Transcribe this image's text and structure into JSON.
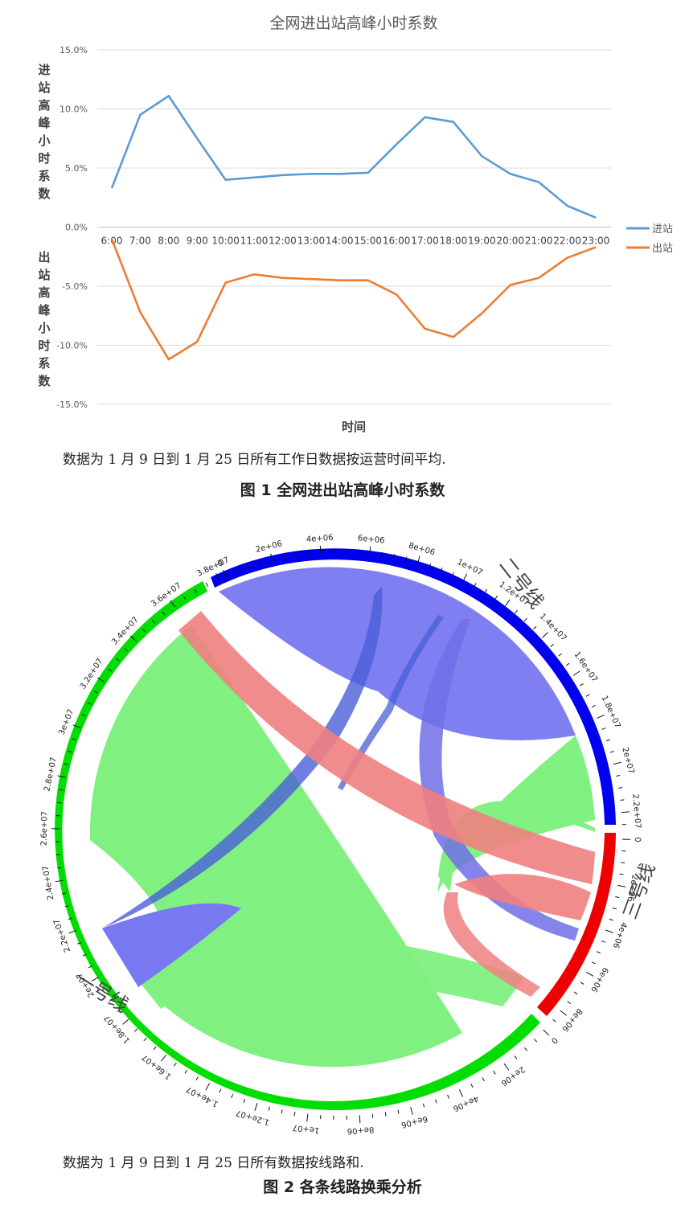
{
  "figure1": {
    "chart_data": {
      "type": "line",
      "title": "全网进出站高峰小时系数",
      "xlabel": "时间",
      "ylabel_top": "进站高峰小时系数",
      "ylabel_bottom": "出站高峰小时系数",
      "ylim": [
        -0.15,
        0.15
      ],
      "yticks": [
        "15.0%",
        "10.0%",
        "5.0%",
        "0.0%",
        "-5.0%",
        "-10.0%",
        "-15.0%"
      ],
      "categories": [
        "6:00",
        "7:00",
        "8:00",
        "9:00",
        "10:00",
        "11:00",
        "12:00",
        "13:00",
        "14:00",
        "15:00",
        "16:00",
        "17:00",
        "18:00",
        "19:00",
        "20:00",
        "21:00",
        "22:00",
        "23:00"
      ],
      "series": [
        {
          "name": "进站",
          "color": "#5b9bd5",
          "values": [
            0.033,
            0.095,
            0.111,
            0.075,
            0.04,
            0.042,
            0.044,
            0.045,
            0.045,
            0.046,
            0.07,
            0.093,
            0.089,
            0.06,
            0.045,
            0.038,
            0.018,
            0.008
          ]
        },
        {
          "name": "出站",
          "color": "#ed7d31",
          "values": [
            -0.01,
            -0.072,
            -0.112,
            -0.097,
            -0.047,
            -0.04,
            -0.043,
            -0.044,
            -0.045,
            -0.045,
            -0.057,
            -0.086,
            -0.093,
            -0.073,
            -0.049,
            -0.043,
            -0.026,
            -0.017
          ]
        }
      ],
      "legend_position": "right"
    },
    "note": "数据为 1 月 9 日到 1 月 25 日所有工作日数据按运营时间平均.",
    "caption": "图 1   全网进出站高峰小时系数"
  },
  "figure2": {
    "chart_data": {
      "type": "chord",
      "groups": [
        {
          "name": "二号线",
          "color": "#0000ee",
          "ticks": [
            "0",
            "2e+06",
            "4e+06",
            "6e+06",
            "8e+06",
            "1e+07",
            "1.2e+07",
            "1.4e+07",
            "1.6e+07",
            "1.8e+07",
            "2e+07",
            "2.2e+07"
          ]
        },
        {
          "name": "三号线",
          "color": "#ee0000",
          "ticks": [
            "0",
            "2e+06",
            "4e+06",
            "6e+06",
            "8e+06"
          ]
        },
        {
          "name": "一号线",
          "color": "#00dd00",
          "ticks": [
            "0",
            "2e+06",
            "4e+06",
            "6e+06",
            "8e+06",
            "1e+07",
            "1.2e+07",
            "1.4e+07",
            "1.6e+07",
            "1.8e+07",
            "2e+07",
            "2.2e+07",
            "2.4e+07",
            "2.6e+07",
            "2.8e+07",
            "3e+07",
            "3.2e+07",
            "3.4e+07",
            "3.6e+07",
            "3.8e+07"
          ]
        }
      ]
    },
    "note": "数据为 1 月 9 日到 1 月 25 日所有数据按线路和.",
    "caption": "图 2   各条线路换乘分析"
  }
}
